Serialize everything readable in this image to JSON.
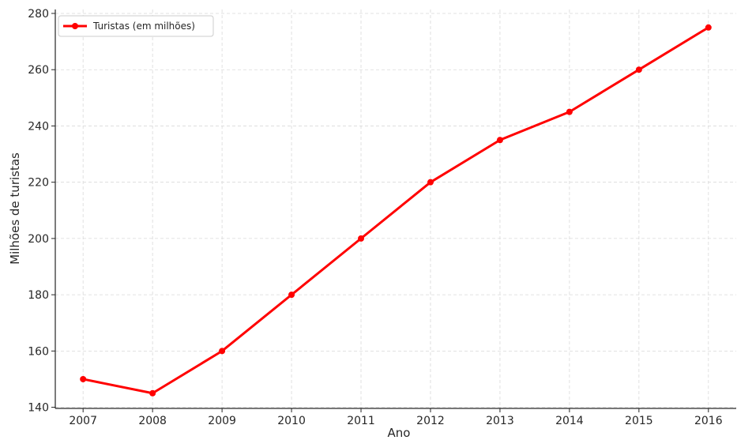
{
  "chart_data": {
    "type": "line",
    "title": "",
    "xlabel": "Ano",
    "ylabel": "Milhões de turistas",
    "x": [
      2007,
      2008,
      2009,
      2010,
      2011,
      2012,
      2013,
      2014,
      2015,
      2016
    ],
    "series": [
      {
        "name": "Turistas (em milhões)",
        "values": [
          150,
          145,
          160,
          180,
          200,
          220,
          235,
          245,
          260,
          275
        ],
        "color": "#ff0000",
        "marker": "circle"
      }
    ],
    "xlim": [
      2006.6,
      2016.4
    ],
    "ylim": [
      139.6,
      281.4
    ],
    "yticks": [
      140,
      160,
      180,
      200,
      220,
      240,
      260,
      280
    ],
    "xticks": [
      2007,
      2008,
      2009,
      2010,
      2011,
      2012,
      2013,
      2014,
      2015,
      2016
    ],
    "grid": true,
    "legend_position": "top-left"
  }
}
